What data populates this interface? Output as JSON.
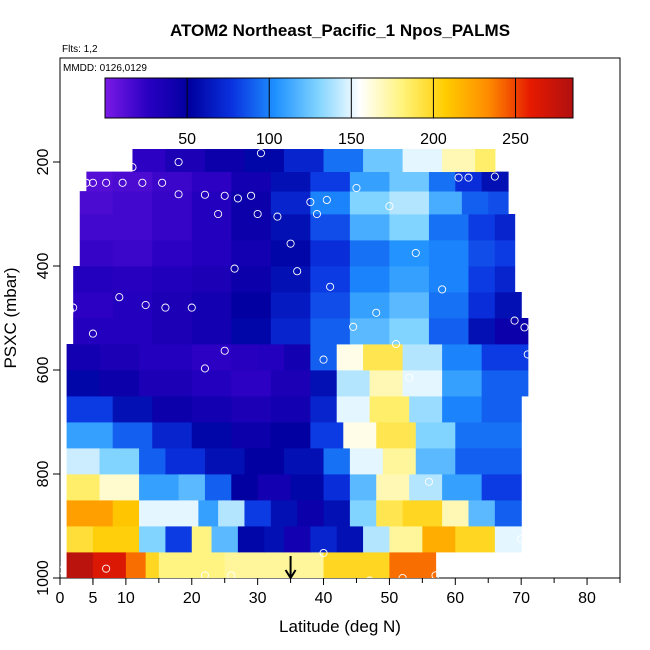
{
  "chart_data": {
    "type": "heatmap",
    "title": "ATOM2 Northeast_Pacific_1 Npos_PALMS",
    "flights_label": "Flts: 1,2",
    "mmdd_label": "MMDD: 0126,0129",
    "xlabel": "Latitude (deg N)",
    "ylabel": "PSXC (mbar)",
    "xlim": [
      0,
      85
    ],
    "ylim": [
      1000,
      0
    ],
    "x_ticks": [
      0,
      5,
      10,
      20,
      30,
      40,
      50,
      60,
      70,
      80
    ],
    "y_ticks": [
      200,
      400,
      600,
      800,
      1000
    ],
    "colorbar": {
      "range": [
        0,
        285
      ],
      "ticks": [
        50,
        100,
        150,
        200,
        250
      ],
      "palette": [
        "#7b1ae6",
        "#2a00c2",
        "#0000a0",
        "#0a33e0",
        "#1e90ff",
        "#7fd3ff",
        "#ffffff",
        "#fff37a",
        "#ffcc00",
        "#ff8c00",
        "#e61a00",
        "#b01010"
      ]
    },
    "bands": [
      {
        "p": 975,
        "segments": [
          [
            1,
            5,
            280
          ],
          [
            5,
            10,
            265
          ],
          [
            10,
            13,
            240
          ],
          [
            13,
            15,
            200
          ],
          [
            15,
            25,
            180
          ],
          [
            25,
            40,
            175
          ],
          [
            40,
            50,
            200
          ],
          [
            50,
            57,
            240
          ]
        ]
      },
      {
        "p": 925,
        "segments": [
          [
            1,
            5,
            195
          ],
          [
            5,
            12,
            205
          ],
          [
            12,
            16,
            130
          ],
          [
            16,
            20,
            80
          ],
          [
            20,
            23,
            180
          ],
          [
            23,
            27,
            120
          ],
          [
            27,
            31,
            55
          ],
          [
            31,
            34,
            60
          ],
          [
            34,
            38,
            40
          ],
          [
            38,
            42,
            70
          ],
          [
            42,
            46,
            60
          ],
          [
            46,
            50,
            140
          ],
          [
            50,
            55,
            175
          ],
          [
            55,
            60,
            220
          ],
          [
            60,
            66,
            200
          ],
          [
            66,
            70,
            150
          ]
        ]
      },
      {
        "p": 875,
        "segments": [
          [
            1,
            8,
            225
          ],
          [
            8,
            12,
            210
          ],
          [
            12,
            16,
            150
          ],
          [
            16,
            21,
            150
          ],
          [
            21,
            24,
            110
          ],
          [
            24,
            28,
            140
          ],
          [
            28,
            32,
            80
          ],
          [
            32,
            36,
            60
          ],
          [
            36,
            40,
            45
          ],
          [
            40,
            44,
            60
          ],
          [
            44,
            48,
            130
          ],
          [
            48,
            52,
            190
          ],
          [
            52,
            58,
            200
          ],
          [
            58,
            62,
            170
          ],
          [
            62,
            66,
            120
          ],
          [
            66,
            70,
            90
          ]
        ]
      },
      {
        "p": 825,
        "segments": [
          [
            1,
            6,
            185
          ],
          [
            6,
            12,
            165
          ],
          [
            12,
            18,
            110
          ],
          [
            18,
            22,
            120
          ],
          [
            22,
            26,
            90
          ],
          [
            26,
            30,
            50
          ],
          [
            30,
            35,
            40
          ],
          [
            35,
            40,
            55
          ],
          [
            40,
            44,
            75
          ],
          [
            44,
            48,
            120
          ],
          [
            48,
            53,
            170
          ],
          [
            53,
            58,
            140
          ],
          [
            58,
            64,
            110
          ],
          [
            64,
            70,
            80
          ]
        ]
      },
      {
        "p": 775,
        "segments": [
          [
            1,
            6,
            145
          ],
          [
            6,
            12,
            130
          ],
          [
            12,
            16,
            90
          ],
          [
            16,
            22,
            75
          ],
          [
            22,
            28,
            60
          ],
          [
            28,
            34,
            50
          ],
          [
            34,
            40,
            60
          ],
          [
            40,
            44,
            95
          ],
          [
            44,
            49,
            150
          ],
          [
            49,
            54,
            175
          ],
          [
            54,
            60,
            120
          ],
          [
            60,
            70,
            90
          ]
        ]
      },
      {
        "p": 725,
        "segments": [
          [
            1,
            8,
            110
          ],
          [
            8,
            14,
            90
          ],
          [
            14,
            20,
            70
          ],
          [
            20,
            26,
            55
          ],
          [
            26,
            32,
            45
          ],
          [
            32,
            38,
            50
          ],
          [
            38,
            43,
            80
          ],
          [
            43,
            48,
            160
          ],
          [
            48,
            54,
            190
          ],
          [
            54,
            60,
            130
          ],
          [
            60,
            70,
            95
          ]
        ]
      },
      {
        "p": 675,
        "segments": [
          [
            1,
            8,
            80
          ],
          [
            8,
            14,
            60
          ],
          [
            14,
            20,
            45
          ],
          [
            20,
            26,
            40
          ],
          [
            26,
            32,
            35
          ],
          [
            32,
            38,
            40
          ],
          [
            38,
            42,
            70
          ],
          [
            42,
            47,
            150
          ],
          [
            47,
            53,
            185
          ],
          [
            53,
            58,
            135
          ],
          [
            58,
            64,
            100
          ],
          [
            64,
            70,
            90
          ]
        ]
      },
      {
        "p": 625,
        "segments": [
          [
            1,
            6,
            55
          ],
          [
            6,
            12,
            45
          ],
          [
            12,
            20,
            35
          ],
          [
            20,
            26,
            30
          ],
          [
            26,
            32,
            25
          ],
          [
            32,
            38,
            35
          ],
          [
            38,
            42,
            60
          ],
          [
            42,
            47,
            140
          ],
          [
            47,
            52,
            170
          ],
          [
            52,
            58,
            150
          ],
          [
            58,
            64,
            110
          ],
          [
            64,
            71,
            90
          ]
        ]
      },
      {
        "p": 575,
        "segments": [
          [
            1,
            6,
            40
          ],
          [
            6,
            12,
            35
          ],
          [
            12,
            20,
            30
          ],
          [
            20,
            26,
            25
          ],
          [
            26,
            30,
            28
          ],
          [
            30,
            34,
            30
          ],
          [
            34,
            38,
            40
          ],
          [
            38,
            42,
            90
          ],
          [
            42,
            46,
            160
          ],
          [
            46,
            52,
            190
          ],
          [
            52,
            58,
            140
          ],
          [
            58,
            64,
            100
          ],
          [
            64,
            71,
            80
          ]
        ]
      },
      {
        "p": 525,
        "segments": [
          [
            2,
            8,
            30
          ],
          [
            8,
            14,
            30
          ],
          [
            14,
            20,
            35
          ],
          [
            20,
            26,
            40
          ],
          [
            26,
            32,
            55
          ],
          [
            32,
            38,
            70
          ],
          [
            38,
            44,
            90
          ],
          [
            44,
            50,
            120
          ],
          [
            50,
            56,
            130
          ],
          [
            56,
            62,
            90
          ],
          [
            62,
            66,
            60
          ],
          [
            66,
            71,
            45
          ]
        ]
      },
      {
        "p": 475,
        "segments": [
          [
            2,
            8,
            25
          ],
          [
            8,
            14,
            30
          ],
          [
            14,
            20,
            35
          ],
          [
            20,
            26,
            40
          ],
          [
            26,
            32,
            50
          ],
          [
            32,
            38,
            65
          ],
          [
            38,
            44,
            85
          ],
          [
            44,
            50,
            110
          ],
          [
            50,
            56,
            120
          ],
          [
            56,
            62,
            95
          ],
          [
            62,
            66,
            75
          ],
          [
            66,
            70,
            60
          ]
        ]
      },
      {
        "p": 425,
        "segments": [
          [
            2,
            8,
            30
          ],
          [
            8,
            14,
            28
          ],
          [
            14,
            20,
            32
          ],
          [
            20,
            26,
            35
          ],
          [
            26,
            32,
            45
          ],
          [
            32,
            38,
            60
          ],
          [
            38,
            44,
            80
          ],
          [
            44,
            50,
            100
          ],
          [
            50,
            56,
            110
          ],
          [
            56,
            62,
            100
          ],
          [
            62,
            66,
            80
          ],
          [
            66,
            69,
            70
          ]
        ]
      },
      {
        "p": 375,
        "segments": [
          [
            3,
            8,
            22
          ],
          [
            8,
            14,
            20
          ],
          [
            14,
            20,
            25
          ],
          [
            20,
            26,
            30
          ],
          [
            26,
            32,
            40
          ],
          [
            32,
            38,
            55
          ],
          [
            38,
            44,
            75
          ],
          [
            44,
            50,
            95
          ],
          [
            50,
            56,
            105
          ],
          [
            56,
            62,
            100
          ],
          [
            62,
            66,
            85
          ],
          [
            66,
            69,
            80
          ]
        ]
      },
      {
        "p": 325,
        "segments": [
          [
            3,
            8,
            18
          ],
          [
            8,
            14,
            18
          ],
          [
            14,
            20,
            22
          ],
          [
            20,
            26,
            30
          ],
          [
            26,
            32,
            45
          ],
          [
            32,
            38,
            60
          ],
          [
            38,
            44,
            85
          ],
          [
            44,
            50,
            115
          ],
          [
            50,
            56,
            130
          ],
          [
            56,
            62,
            95
          ],
          [
            62,
            66,
            80
          ],
          [
            66,
            69,
            70
          ]
        ]
      },
      {
        "p": 275,
        "segments": [
          [
            3,
            8,
            15
          ],
          [
            8,
            14,
            18
          ],
          [
            14,
            20,
            22
          ],
          [
            20,
            26,
            30
          ],
          [
            26,
            32,
            45
          ],
          [
            32,
            38,
            70
          ],
          [
            38,
            44,
            100
          ],
          [
            44,
            50,
            130
          ],
          [
            50,
            56,
            140
          ],
          [
            56,
            61,
            115
          ],
          [
            61,
            65,
            90
          ],
          [
            65,
            68,
            85
          ]
        ]
      },
      {
        "p": 237,
        "segments": [
          [
            4,
            8,
            12
          ],
          [
            8,
            14,
            15
          ],
          [
            14,
            20,
            20
          ],
          [
            20,
            26,
            25
          ],
          [
            26,
            32,
            40
          ],
          [
            32,
            38,
            60
          ],
          [
            38,
            44,
            80
          ],
          [
            44,
            50,
            110
          ],
          [
            50,
            56,
            125
          ],
          [
            56,
            60,
            95
          ],
          [
            60,
            64,
            75
          ],
          [
            64,
            68,
            60
          ]
        ]
      },
      {
        "p": 200,
        "segments": [
          [
            11,
            16,
            25
          ],
          [
            16,
            22,
            35
          ],
          [
            22,
            28,
            45
          ],
          [
            28,
            34,
            55
          ],
          [
            34,
            40,
            70
          ],
          [
            40,
            46,
            95
          ],
          [
            46,
            52,
            125
          ],
          [
            52,
            58,
            150
          ],
          [
            58,
            63,
            170
          ],
          [
            63,
            66,
            185
          ]
        ]
      }
    ],
    "points": [
      [
        0.3,
        985
      ],
      [
        7,
        982
      ],
      [
        22,
        995
      ],
      [
        26,
        995
      ],
      [
        47,
        1005
      ],
      [
        52,
        1000
      ],
      [
        57,
        995
      ],
      [
        70,
        925
      ],
      [
        40,
        952
      ],
      [
        56,
        815
      ],
      [
        22,
        597
      ],
      [
        25,
        563
      ],
      [
        40,
        580
      ],
      [
        53,
        615
      ],
      [
        71,
        570
      ],
      [
        1.5,
        485
      ],
      [
        2,
        480
      ],
      [
        5,
        530
      ],
      [
        9,
        460
      ],
      [
        13,
        475
      ],
      [
        16,
        480
      ],
      [
        20,
        480
      ],
      [
        48,
        490
      ],
      [
        51,
        550
      ],
      [
        44.5,
        517
      ],
      [
        69,
        505
      ],
      [
        70.5,
        518
      ],
      [
        26.5,
        405
      ],
      [
        36,
        410
      ],
      [
        41,
        440
      ],
      [
        54,
        375
      ],
      [
        58,
        445
      ],
      [
        30,
        300
      ],
      [
        33,
        305
      ],
      [
        35,
        357
      ],
      [
        38,
        277
      ],
      [
        39,
        300
      ],
      [
        40.5,
        273
      ],
      [
        24,
        300
      ],
      [
        27,
        270
      ],
      [
        29,
        265
      ],
      [
        25,
        265
      ],
      [
        22,
        263
      ],
      [
        18,
        262
      ],
      [
        45,
        250
      ],
      [
        50,
        285
      ],
      [
        4,
        240
      ],
      [
        5,
        240
      ],
      [
        7,
        240
      ],
      [
        9.5,
        240
      ],
      [
        12.5,
        240
      ],
      [
        15.5,
        240
      ],
      [
        18,
        200
      ],
      [
        11,
        210
      ],
      [
        30.5,
        183
      ],
      [
        60.5,
        230
      ],
      [
        62,
        230
      ],
      [
        66,
        228
      ]
    ],
    "marker": {
      "x": 35,
      "p": 1000,
      "direction": "down"
    }
  }
}
